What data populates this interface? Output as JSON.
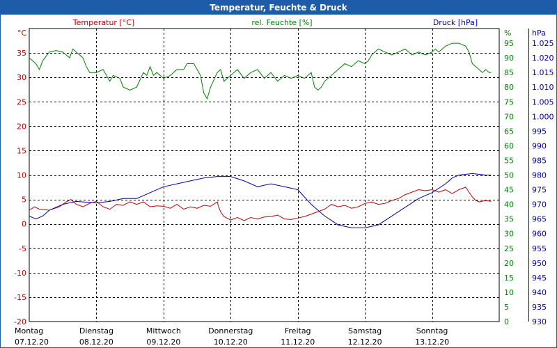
{
  "window": {
    "title": "Temperatur, Feuchte & Druck"
  },
  "colors": {
    "temperature": "#c00000",
    "humidity": "#008000",
    "pressure": "#0000b0",
    "grid": "#000000",
    "titlebar": "#1e5ba8"
  },
  "chart_data": {
    "type": "line",
    "title": "Temperatur, Feuchte & Druck",
    "grid": true,
    "x_range_days": [
      0,
      7
    ],
    "x_ticks": [
      {
        "x": 0,
        "day": "Montag",
        "date": "07.12.20"
      },
      {
        "x": 1,
        "day": "Dienstag",
        "date": "08.12.20"
      },
      {
        "x": 2,
        "day": "Mittwoch",
        "date": "09.12.20"
      },
      {
        "x": 3,
        "day": "Donnerstag",
        "date": "10.12.20"
      },
      {
        "x": 4,
        "day": "Freitag",
        "date": "11.12.20"
      },
      {
        "x": 5,
        "day": "Samstag",
        "date": "12.12.20"
      },
      {
        "x": 6,
        "day": "Sonntag",
        "date": "13.12.20"
      }
    ],
    "axes": {
      "temperature": {
        "label": "Temperatur [°C]",
        "unit": "°C",
        "ylim": [
          -20,
          40
        ],
        "ticks": [
          "35",
          "30",
          "25",
          "20",
          "15",
          "10",
          "5",
          "0",
          "-5",
          "-10",
          "-15",
          "-20"
        ]
      },
      "humidity": {
        "label": "rel. Feuchte [%]",
        "unit": "%",
        "ylim": [
          0,
          100
        ],
        "ticks": [
          "95",
          "90",
          "85",
          "80",
          "75",
          "70",
          "65",
          "60",
          "55",
          "50",
          "45",
          "40",
          "35",
          "30",
          "25",
          "20",
          "15",
          "10",
          "5",
          "0"
        ]
      },
      "pressure": {
        "label": "Druck [hPa]",
        "unit": "hPa",
        "ylim": [
          930,
          1030
        ],
        "ticks": [
          "1.025",
          "1.020",
          "1.015",
          "1.010",
          "1.005",
          "1.000",
          "995",
          "990",
          "985",
          "980",
          "975",
          "970",
          "965",
          "960",
          "955",
          "950",
          "945",
          "940",
          "935",
          "930"
        ]
      }
    },
    "series": [
      {
        "name": "Temperatur [°C]",
        "axis": "temperature",
        "points": [
          [
            0,
            2.8
          ],
          [
            0.08,
            3.5
          ],
          [
            0.15,
            3.0
          ],
          [
            0.3,
            2.8
          ],
          [
            0.45,
            3.5
          ],
          [
            0.55,
            4.5
          ],
          [
            0.62,
            5.0
          ],
          [
            0.7,
            4.0
          ],
          [
            0.8,
            3.5
          ],
          [
            0.9,
            4.2
          ],
          [
            1.0,
            4.6
          ],
          [
            1.1,
            3.5
          ],
          [
            1.2,
            3.0
          ],
          [
            1.3,
            4.0
          ],
          [
            1.4,
            3.8
          ],
          [
            1.5,
            4.5
          ],
          [
            1.6,
            4.0
          ],
          [
            1.7,
            4.5
          ],
          [
            1.8,
            3.5
          ],
          [
            1.9,
            3.7
          ],
          [
            2.0,
            3.6
          ],
          [
            2.1,
            3.2
          ],
          [
            2.2,
            4.0
          ],
          [
            2.3,
            3.0
          ],
          [
            2.4,
            3.5
          ],
          [
            2.5,
            3.2
          ],
          [
            2.6,
            3.8
          ],
          [
            2.7,
            3.6
          ],
          [
            2.8,
            4.5
          ],
          [
            2.82,
            3.5
          ],
          [
            2.85,
            2.5
          ],
          [
            2.9,
            1.5
          ],
          [
            3.0,
            0.8
          ],
          [
            3.1,
            1.3
          ],
          [
            3.2,
            0.7
          ],
          [
            3.3,
            1.3
          ],
          [
            3.4,
            1.0
          ],
          [
            3.5,
            1.4
          ],
          [
            3.6,
            1.5
          ],
          [
            3.7,
            1.8
          ],
          [
            3.8,
            1.0
          ],
          [
            3.9,
            0.9
          ],
          [
            4.0,
            1.2
          ],
          [
            4.1,
            1.5
          ],
          [
            4.2,
            2.0
          ],
          [
            4.3,
            2.5
          ],
          [
            4.4,
            3.0
          ],
          [
            4.5,
            4.0
          ],
          [
            4.6,
            3.5
          ],
          [
            4.7,
            3.8
          ],
          [
            4.8,
            3.2
          ],
          [
            4.9,
            3.5
          ],
          [
            5.0,
            4.2
          ],
          [
            5.1,
            4.5
          ],
          [
            5.2,
            4.0
          ],
          [
            5.3,
            4.2
          ],
          [
            5.4,
            4.8
          ],
          [
            5.5,
            5.2
          ],
          [
            5.6,
            6.0
          ],
          [
            5.7,
            6.5
          ],
          [
            5.8,
            7.0
          ],
          [
            5.9,
            6.8
          ],
          [
            6.0,
            7.0
          ],
          [
            6.1,
            6.5
          ],
          [
            6.2,
            7.0
          ],
          [
            6.3,
            6.2
          ],
          [
            6.4,
            7.0
          ],
          [
            6.5,
            7.5
          ],
          [
            6.55,
            6.5
          ],
          [
            6.6,
            5.5
          ],
          [
            6.65,
            4.8
          ],
          [
            6.7,
            4.5
          ],
          [
            6.8,
            4.8
          ],
          [
            6.88,
            4.6
          ]
        ]
      },
      {
        "name": "rel. Feuchte [%]",
        "axis": "humidity",
        "points": [
          [
            0,
            90
          ],
          [
            0.1,
            88
          ],
          [
            0.15,
            86
          ],
          [
            0.2,
            89
          ],
          [
            0.3,
            92
          ],
          [
            0.4,
            92.5
          ],
          [
            0.5,
            92
          ],
          [
            0.55,
            91
          ],
          [
            0.6,
            90
          ],
          [
            0.65,
            93
          ],
          [
            0.7,
            92
          ],
          [
            0.8,
            90
          ],
          [
            0.85,
            87
          ],
          [
            0.9,
            85
          ],
          [
            1.0,
            85
          ],
          [
            1.1,
            86
          ],
          [
            1.15,
            84
          ],
          [
            1.2,
            82
          ],
          [
            1.25,
            84
          ],
          [
            1.35,
            83
          ],
          [
            1.4,
            80
          ],
          [
            1.5,
            79
          ],
          [
            1.6,
            80
          ],
          [
            1.7,
            85
          ],
          [
            1.75,
            84
          ],
          [
            1.8,
            87
          ],
          [
            1.85,
            84
          ],
          [
            1.9,
            85
          ],
          [
            2.0,
            83
          ],
          [
            2.1,
            84
          ],
          [
            2.2,
            86
          ],
          [
            2.3,
            86
          ],
          [
            2.35,
            88
          ],
          [
            2.45,
            88
          ],
          [
            2.5,
            86
          ],
          [
            2.55,
            84
          ],
          [
            2.6,
            78
          ],
          [
            2.65,
            76
          ],
          [
            2.7,
            80
          ],
          [
            2.8,
            85
          ],
          [
            2.85,
            86
          ],
          [
            2.9,
            82
          ],
          [
            3.0,
            84
          ],
          [
            3.1,
            86
          ],
          [
            3.2,
            83
          ],
          [
            3.3,
            85
          ],
          [
            3.4,
            86
          ],
          [
            3.5,
            83
          ],
          [
            3.6,
            85
          ],
          [
            3.7,
            82
          ],
          [
            3.8,
            84
          ],
          [
            3.9,
            83
          ],
          [
            4.0,
            84
          ],
          [
            4.1,
            83
          ],
          [
            4.2,
            85
          ],
          [
            4.25,
            80
          ],
          [
            4.3,
            79
          ],
          [
            4.35,
            80
          ],
          [
            4.4,
            82
          ],
          [
            4.5,
            84
          ],
          [
            4.6,
            86
          ],
          [
            4.7,
            88
          ],
          [
            4.8,
            87
          ],
          [
            4.85,
            88
          ],
          [
            4.9,
            89
          ],
          [
            5.0,
            88
          ],
          [
            5.05,
            89
          ],
          [
            5.1,
            91
          ],
          [
            5.2,
            93
          ],
          [
            5.3,
            92
          ],
          [
            5.4,
            91
          ],
          [
            5.5,
            92
          ],
          [
            5.6,
            93
          ],
          [
            5.7,
            91
          ],
          [
            5.8,
            92
          ],
          [
            5.9,
            91
          ],
          [
            6.0,
            92
          ],
          [
            6.05,
            93
          ],
          [
            6.1,
            92
          ],
          [
            6.2,
            94
          ],
          [
            6.3,
            95
          ],
          [
            6.4,
            95
          ],
          [
            6.5,
            94
          ],
          [
            6.55,
            92
          ],
          [
            6.6,
            88
          ],
          [
            6.7,
            86
          ],
          [
            6.75,
            85
          ],
          [
            6.8,
            86
          ],
          [
            6.85,
            85
          ],
          [
            6.88,
            85
          ]
        ]
      },
      {
        "name": "Druck [hPa]",
        "axis": "pressure",
        "points": [
          [
            0,
            966
          ],
          [
            0.1,
            965
          ],
          [
            0.2,
            966
          ],
          [
            0.3,
            968
          ],
          [
            0.5,
            970
          ],
          [
            0.7,
            971
          ],
          [
            1.0,
            970.5
          ],
          [
            1.2,
            971
          ],
          [
            1.4,
            972
          ],
          [
            1.6,
            972
          ],
          [
            1.8,
            974
          ],
          [
            2.0,
            976
          ],
          [
            2.2,
            977
          ],
          [
            2.4,
            978
          ],
          [
            2.6,
            979
          ],
          [
            2.8,
            979.5
          ],
          [
            3.0,
            979.5
          ],
          [
            3.2,
            978
          ],
          [
            3.4,
            976
          ],
          [
            3.6,
            977
          ],
          [
            3.8,
            976
          ],
          [
            4.0,
            975
          ],
          [
            4.2,
            970
          ],
          [
            4.4,
            966
          ],
          [
            4.6,
            963
          ],
          [
            4.8,
            962
          ],
          [
            5.0,
            962
          ],
          [
            5.2,
            963
          ],
          [
            5.4,
            966
          ],
          [
            5.6,
            969
          ],
          [
            5.8,
            972
          ],
          [
            6.0,
            974
          ],
          [
            6.2,
            977
          ],
          [
            6.3,
            979
          ],
          [
            6.4,
            980
          ],
          [
            6.6,
            980.5
          ],
          [
            6.8,
            980
          ],
          [
            6.88,
            980
          ]
        ]
      }
    ]
  }
}
